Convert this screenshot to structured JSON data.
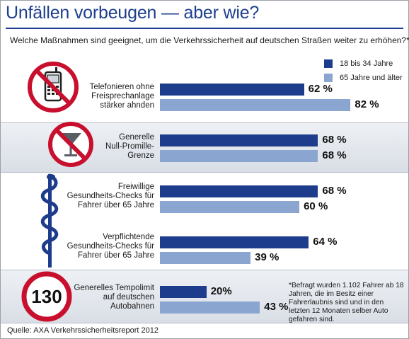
{
  "title": "Unfällen vorbeugen — aber wie?",
  "question": "Welche Maßnahmen sind geeignet, um die Verkehrssicherheit auf deutschen Straßen weiter zu erhöhen?*",
  "legend": [
    {
      "label": "18 bis 34 Jahre",
      "color": "#1d3c8c"
    },
    {
      "label": "65 Jahre und älter",
      "color": "#8aa6d0"
    }
  ],
  "icons": {
    "phone": "phone-prohibited-icon",
    "glass": "cocktail-prohibited-icon",
    "staff": "aesculapian-staff-icon",
    "speed": "speed-limit-sign-icon",
    "speed_sign_text": "130"
  },
  "chart_data": {
    "type": "bar",
    "orientation": "horizontal",
    "title": "Unfällen vorbeugen — aber wie?",
    "subtitle": "Welche Maßnahmen sind geeignet, um die Verkehrssicherheit auf deutschen Straßen weiter zu erhöhen?*",
    "categories": [
      [
        "Telefonieren ohne",
        "Freisprechanlage",
        "stärker ahnden"
      ],
      [
        "Generelle",
        "Null-Promille-",
        "Grenze"
      ],
      [
        "Freiwillige",
        "Gesundheits-Checks für",
        "Fahrer über 65 Jahre"
      ],
      [
        "Verpflichtende",
        "Gesundheits-Checks für",
        "Fahrer über 65 Jahre"
      ],
      [
        "Generelles Tempolimit",
        "auf deutschen",
        "Autobahnen"
      ]
    ],
    "series": [
      {
        "name": "18 bis 34 Jahre",
        "values": [
          62,
          68,
          68,
          64,
          20
        ],
        "labels": [
          "62 %",
          "68 %",
          "68 %",
          "64 %",
          "20%"
        ]
      },
      {
        "name": "65 Jahre und älter",
        "values": [
          82,
          68,
          60,
          39,
          43
        ],
        "labels": [
          "82 %",
          "68 %",
          "60 %",
          "39 %",
          "43 %"
        ]
      }
    ],
    "unit": "%",
    "legend_position": "top-right",
    "grid": false
  },
  "footnote": "*Befragt wurden 1.102 Fahrer ab 18 Jahren, die im Besitz einer Fahrerlaubnis sind und in den letzten 12 Monaten selber Auto gefahren sind.",
  "source": "Quelle: AXA Verkehrssicherheitsreport 2012"
}
